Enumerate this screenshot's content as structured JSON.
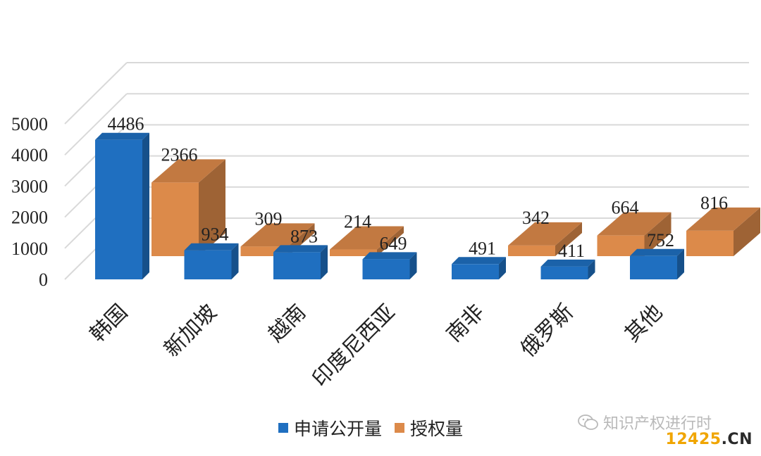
{
  "chart_data": {
    "type": "bar",
    "categories": [
      "韩国",
      "新加坡",
      "越南",
      "印度尼西亚",
      "南非",
      "俄罗斯",
      "其他"
    ],
    "series": [
      {
        "name": "申请公开量",
        "values": [
          4486,
          934,
          873,
          649,
          491,
          411,
          752
        ]
      },
      {
        "name": "授权量",
        "values": [
          2366,
          309,
          214,
          null,
          342,
          664,
          816
        ]
      }
    ],
    "value_labels": {
      "申请公开量": [
        "4486",
        "934",
        "873",
        "649",
        "491",
        "411",
        "752"
      ],
      "授权量": [
        "2366",
        "309",
        "214",
        "",
        "342",
        "664",
        "816"
      ]
    },
    "yticks": [
      "0",
      "1000",
      "2000",
      "3000",
      "4000",
      "5000"
    ],
    "ylim": [
      0,
      5000
    ],
    "grid": true,
    "legend_position": "bottom",
    "colors": {
      "申请公开量": "#1f6fc0",
      "授权量": "#dc8a4a"
    }
  },
  "legend": {
    "items": [
      {
        "label": "申请公开量",
        "color": "#1f6fc0"
      },
      {
        "label": "授权量",
        "color": "#dc8a4a"
      }
    ]
  },
  "watermark": {
    "text": "知识产权进行时",
    "icon": "wechat-icon"
  },
  "site": {
    "num": "12425",
    "suffix": ".CN"
  }
}
